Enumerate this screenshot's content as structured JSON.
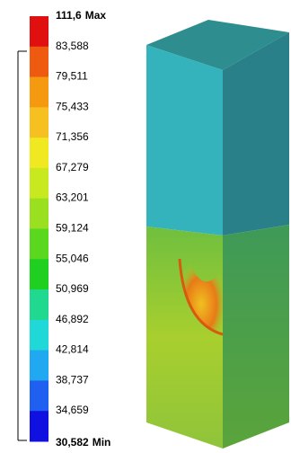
{
  "legend": {
    "labels": [
      {
        "value": "111,6",
        "tag": "Max"
      },
      {
        "value": "83,588"
      },
      {
        "value": "79,511"
      },
      {
        "value": "75,433"
      },
      {
        "value": "71,356"
      },
      {
        "value": "67,279"
      },
      {
        "value": "63,201"
      },
      {
        "value": "59,124"
      },
      {
        "value": "55,046"
      },
      {
        "value": "50,969"
      },
      {
        "value": "46,892"
      },
      {
        "value": "42,814"
      },
      {
        "value": "38,737"
      },
      {
        "value": "34,659"
      },
      {
        "value": "30,582",
        "tag": "Min"
      }
    ]
  }
}
